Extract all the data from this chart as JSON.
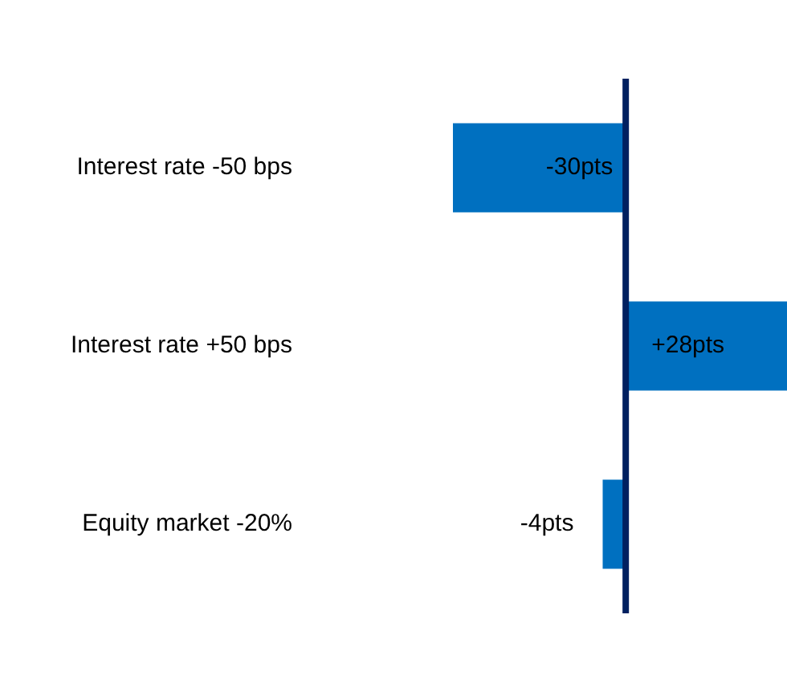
{
  "chart_data": {
    "type": "bar",
    "orientation": "horizontal",
    "categories": [
      "Interest rate -50 bps",
      "Interest rate +50 bps",
      "Equity market -20%"
    ],
    "values": [
      -30,
      28,
      -4
    ],
    "value_labels": [
      "-30pts",
      "+28pts",
      "-4pts"
    ],
    "color": "#0070c0"
  }
}
